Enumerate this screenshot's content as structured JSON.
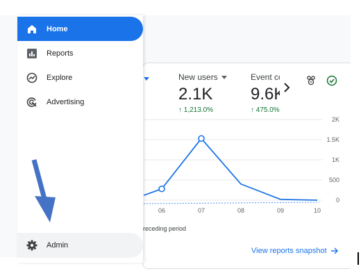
{
  "sidebar": {
    "items": [
      {
        "label": "Home",
        "icon": "home-icon",
        "active": true
      },
      {
        "label": "Reports",
        "icon": "bar-chart-icon",
        "active": false
      },
      {
        "label": "Explore",
        "icon": "explore-icon",
        "active": false
      },
      {
        "label": "Advertising",
        "icon": "advertising-icon",
        "active": false
      }
    ],
    "admin_label": "Admin"
  },
  "metrics": [
    {
      "label": "New users",
      "value": "2.1K",
      "change": "1,213.0%"
    },
    {
      "label": "Event co",
      "value": "9.6K",
      "change": "475.0%"
    }
  ],
  "chart_data": {
    "type": "line",
    "x": [
      "06",
      "07",
      "08",
      "09",
      "10"
    ],
    "y_ticks": [
      "2K",
      "1.5K",
      "1K",
      "500",
      "0"
    ],
    "series": [
      {
        "values": [
          280,
          1530,
          400,
          20,
          0
        ]
      }
    ],
    "ylim": [
      0,
      2000
    ]
  },
  "legend_text": "receding period",
  "footer": {
    "link_label": "View reports snapshot"
  },
  "colors": {
    "accent": "#1a73e8",
    "positive": "#137333",
    "arrow": "#4472c4"
  }
}
